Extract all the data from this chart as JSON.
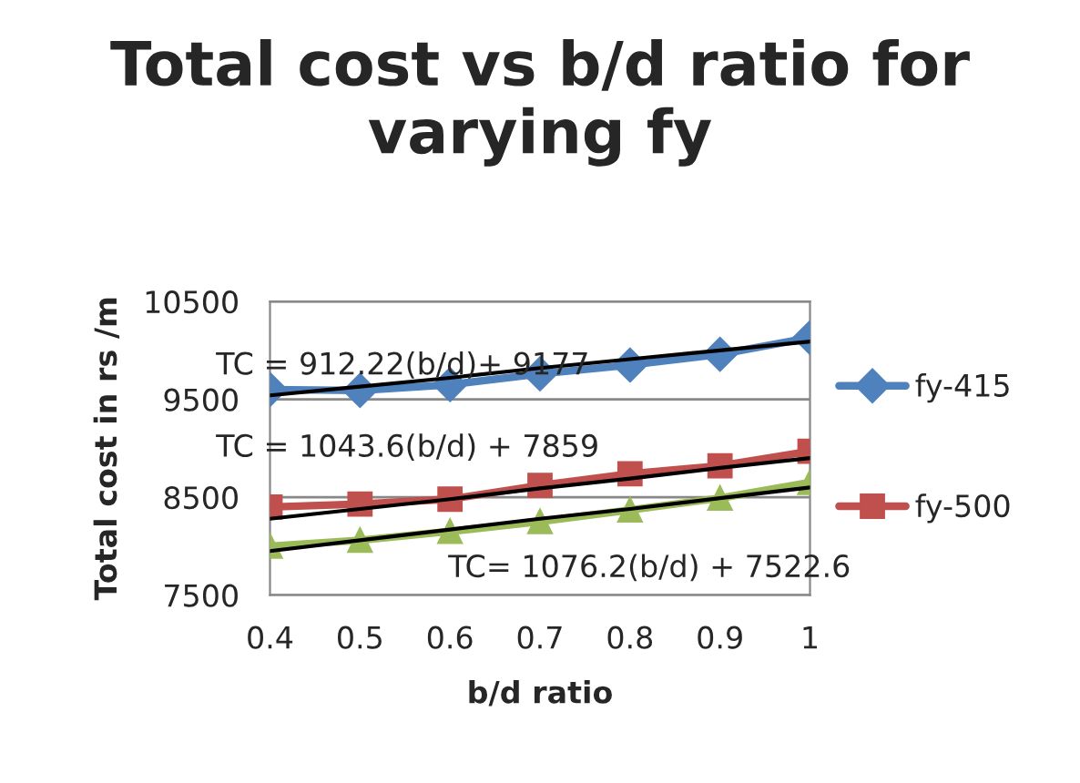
{
  "chart_data": {
    "type": "line",
    "title": "Total cost vs b/d ratio for varying fy",
    "xlabel": "b/d ratio",
    "ylabel": "Total cost in rs /m",
    "x": [
      0.4,
      0.5,
      0.6,
      0.7,
      0.8,
      0.9,
      1
    ],
    "xlim": [
      0.4,
      1
    ],
    "xticks": [
      0.4,
      0.5,
      0.6,
      0.7,
      0.8,
      0.9,
      1
    ],
    "ylim": [
      7500,
      10500
    ],
    "yticks": [
      7500,
      8500,
      9500,
      10500
    ],
    "grid": "y",
    "legend": "right",
    "series": [
      {
        "name": "fy-415",
        "color": "#4f81bd",
        "marker": "diamond",
        "values": [
          9600,
          9590,
          9650,
          9760,
          9850,
          9960,
          10130
        ]
      },
      {
        "name": "fy-500",
        "color": "#c0504d",
        "marker": "square",
        "values": [
          8400,
          8430,
          8480,
          8620,
          8740,
          8820,
          8970
        ]
      },
      {
        "color": "#9bbb59",
        "marker": "triangle",
        "values": [
          8000,
          8060,
          8150,
          8250,
          8370,
          8490,
          8650
        ]
      },
      {
        "color": "#000000",
        "marker": "none",
        "values": [
          9540,
          9630,
          9720,
          9820,
          9910,
          10000,
          10090
        ]
      },
      {
        "color": "#000000",
        "marker": "none",
        "values": [
          8280,
          8380,
          8480,
          8590,
          8690,
          8800,
          8900
        ]
      },
      {
        "color": "#000000",
        "marker": "none",
        "values": [
          7950,
          8060,
          8170,
          8280,
          8380,
          8490,
          8600
        ]
      }
    ],
    "annotations": [
      "TC = 912.22(b/d)+ 9177",
      "TC = 1043.6(b/d) + 7859",
      "TC= 1076.2(b/d) + 7522.6"
    ]
  }
}
